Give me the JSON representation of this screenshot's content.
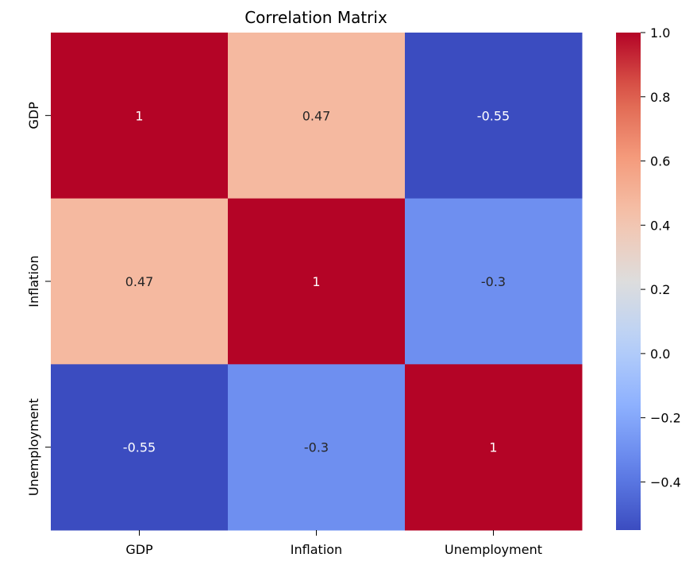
{
  "chart_data": {
    "type": "heatmap",
    "title": "Correlation Matrix",
    "xlabel": "",
    "ylabel": "",
    "x_categories": [
      "GDP",
      "Inflation",
      "Unemployment"
    ],
    "y_categories": [
      "GDP",
      "Inflation",
      "Unemployment"
    ],
    "values": [
      [
        1.0,
        0.47,
        -0.55
      ],
      [
        0.47,
        1.0,
        -0.3
      ],
      [
        -0.55,
        -0.3,
        1.0
      ]
    ],
    "annotations": [
      [
        "1",
        "0.47",
        "-0.55"
      ],
      [
        "0.47",
        "1",
        "-0.3"
      ],
      [
        "-0.55",
        "-0.3",
        "1"
      ]
    ],
    "colormap": "coolwarm",
    "colorbar": {
      "vmin": -0.55,
      "vmax": 1.0,
      "ticks": [
        -0.4,
        -0.2,
        0.0,
        0.2,
        0.4,
        0.6,
        0.8,
        1.0
      ],
      "tick_labels": [
        "−0.4",
        "−0.2",
        "0.0",
        "0.2",
        "0.4",
        "0.6",
        "0.8",
        "1.0"
      ]
    },
    "grid": false,
    "legend": "colorbar-right"
  }
}
